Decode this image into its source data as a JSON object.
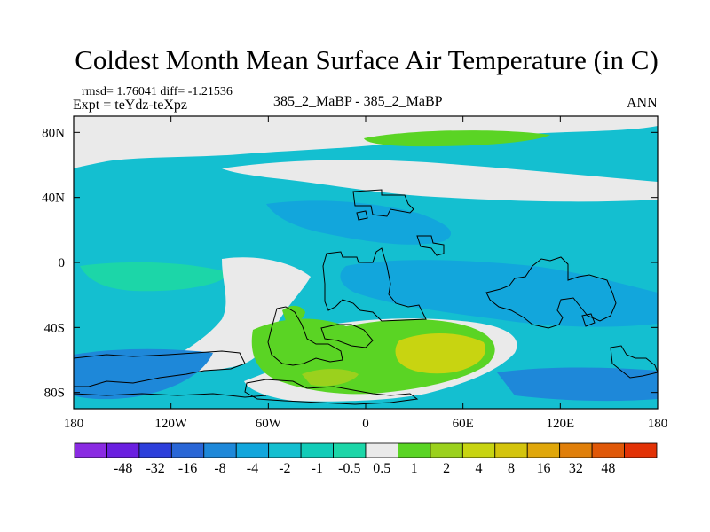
{
  "title": "Coldest Month Mean Surface Air Temperature (in C)",
  "stats": "rmsd= 1.76041 diff= -1.21536",
  "expt": "Expt = teYdz-teXpz",
  "center_label": "385_2_MaBP - 385_2_MaBP",
  "season": "ANN",
  "map": {
    "lon_range": [
      -180,
      180
    ],
    "lat_range": [
      -90,
      90
    ],
    "x_ticks": [
      {
        "lon": -180,
        "label": "180"
      },
      {
        "lon": -120,
        "label": "120W"
      },
      {
        "lon": -60,
        "label": "60W"
      },
      {
        "lon": 0,
        "label": "0"
      },
      {
        "lon": 60,
        "label": "60E"
      },
      {
        "lon": 120,
        "label": "120E"
      },
      {
        "lon": 180,
        "label": "180"
      }
    ],
    "y_ticks": [
      {
        "lat": 80,
        "label": "80N"
      },
      {
        "lat": 40,
        "label": "40N"
      },
      {
        "lat": 0,
        "label": "0"
      },
      {
        "lat": -40,
        "label": "40S"
      },
      {
        "lat": -80,
        "label": "80S"
      }
    ]
  },
  "colorbar": {
    "colors": [
      "#8a2be2",
      "#6a1fe0",
      "#2d3fdb",
      "#2966d6",
      "#1e88d9",
      "#12a6dc",
      "#14bfd0",
      "#12ccb8",
      "#1cd6a8",
      "#eaeaea",
      "#5ad424",
      "#9bd11d",
      "#c8d411",
      "#d4c40c",
      "#e0a70b",
      "#e07f0a",
      "#e05808",
      "#e23206"
    ],
    "labels": [
      "-48",
      "-32",
      "-16",
      "-8",
      "-4",
      "-2",
      "-1",
      "-0.5",
      "0.5",
      "1",
      "2",
      "4",
      "8",
      "16",
      "32",
      "48"
    ]
  }
}
